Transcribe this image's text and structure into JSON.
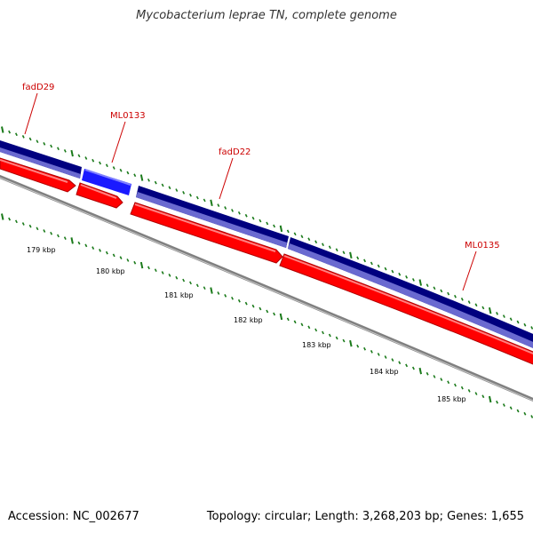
{
  "title": "Mycobacterium leprae TN, complete genome",
  "footer": {
    "accession": "Accession: NC_002677",
    "summary": "Topology: circular; Length: 3,268,203 bp; Genes: 1,655"
  },
  "colors": {
    "background": "#ffffff",
    "gene_label": "#cc0000",
    "tick": "#1a7a1a",
    "forward_gene": "#00007f",
    "forward_gene_light": "#6a6ad0",
    "highlight_gene": "#1a1aff",
    "reverse_gene": "#ff0000",
    "backbone": "#808080"
  },
  "gene_labels": [
    {
      "name": "fadD29"
    },
    {
      "name": "ML0133"
    },
    {
      "name": "fadD22"
    },
    {
      "name": "ML0135"
    }
  ],
  "scale_labels": [
    "179 kbp",
    "180 kbp",
    "181 kbp",
    "182 kbp",
    "183 kbp",
    "184 kbp",
    "185 kbp"
  ]
}
